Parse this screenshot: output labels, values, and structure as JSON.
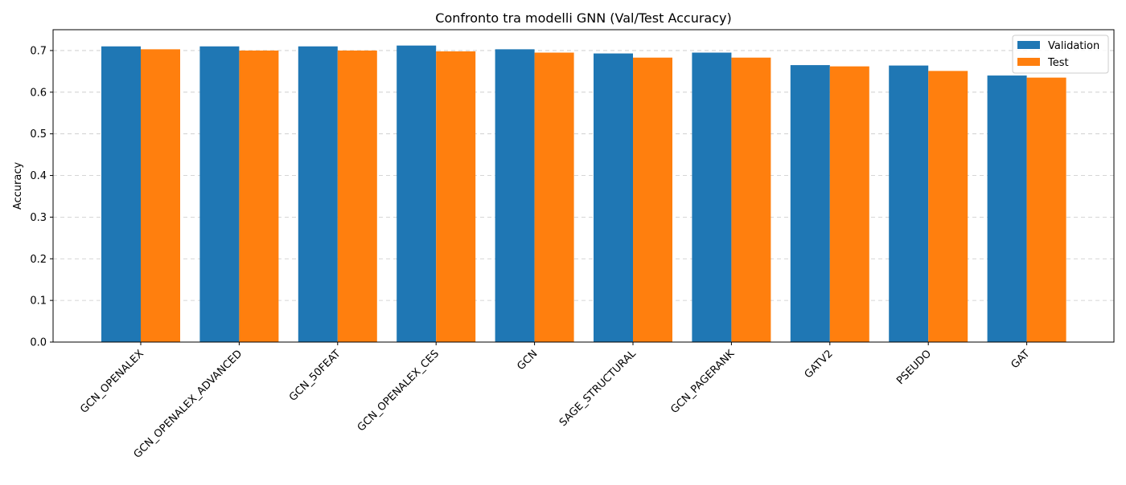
{
  "chart_data": {
    "type": "bar",
    "title": "Confronto tra modelli GNN (Val/Test Accuracy)",
    "xlabel": "",
    "ylabel": "Accuracy",
    "ylim": [
      0,
      0.75
    ],
    "yticks": [
      "0.0",
      "0.1",
      "0.2",
      "0.3",
      "0.4",
      "0.5",
      "0.6",
      "0.7"
    ],
    "grid": "y-dashed",
    "legend_position": "top-right",
    "categories": [
      "GCN_OPENALEX",
      "GCN_OPENALEX_ADVANCED",
      "GCN_50FEAT",
      "GCN_OPENALEX_CES",
      "GCN",
      "SAGE_STRUCTURAL",
      "GCN_PAGERANK",
      "GATV2",
      "PSEUDO",
      "GAT"
    ],
    "series": [
      {
        "name": "Validation",
        "color": "#1f77b4",
        "values": [
          0.71,
          0.71,
          0.71,
          0.712,
          0.703,
          0.693,
          0.695,
          0.665,
          0.664,
          0.64
        ]
      },
      {
        "name": "Test",
        "color": "#ff7f0e",
        "values": [
          0.703,
          0.7,
          0.7,
          0.698,
          0.695,
          0.683,
          0.683,
          0.662,
          0.651,
          0.635
        ]
      }
    ]
  }
}
